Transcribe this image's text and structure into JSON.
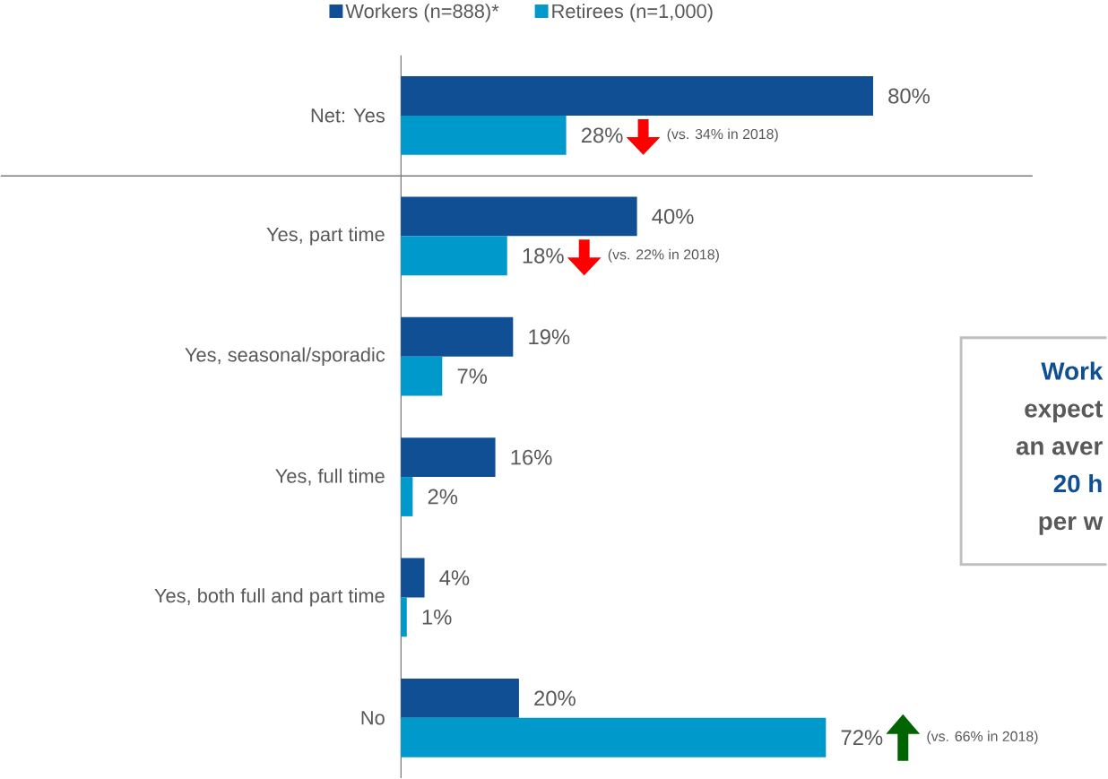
{
  "chart_data": {
    "type": "bar",
    "orientation": "horizontal",
    "categories": [
      "Net: Yes",
      "Yes, part time",
      "Yes, seasonal/sporadic",
      "Yes, full time",
      "Yes, both full and part time",
      "No"
    ],
    "series": [
      {
        "name": "Workers (n=888)*",
        "color": "#114f94",
        "values": [
          80,
          40,
          19,
          16,
          4,
          20
        ],
        "value_labels": [
          "80%",
          "40%",
          "19%",
          "16%",
          "4%",
          "20%"
        ]
      },
      {
        "name": "Retirees (n=1,000)",
        "color": "#0099cc",
        "values": [
          28,
          18,
          7,
          2,
          1,
          72
        ],
        "value_labels": [
          "28%",
          "18%",
          "7%",
          "2%",
          "1%",
          "72%"
        ]
      }
    ],
    "xlim": [
      0,
      107
    ],
    "legend": "top",
    "annotations": [
      "(vs. 34% in 2018)",
      "(vs. 22% in 2018)",
      "(vs. 66% in 2018)",
      "Work",
      "expect",
      "an aver",
      "20 h",
      "per w"
    ]
  }
}
